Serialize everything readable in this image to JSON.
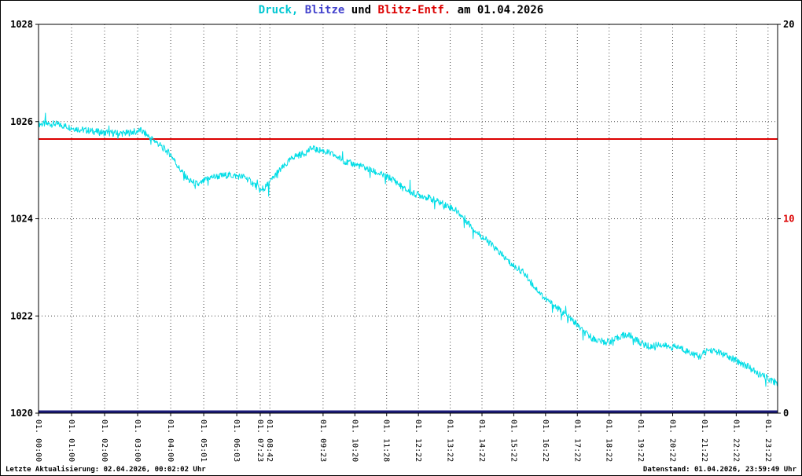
{
  "title": {
    "full": "Druck, Blitze und Blitz-Entf. am 01.04.2026",
    "parts": [
      {
        "text": "Druck,",
        "color": "#00c7d2"
      },
      {
        "text": " Blitze",
        "color": "#4242cd"
      },
      {
        "text": " und ",
        "color": "#000000"
      },
      {
        "text": "Blitz-Entf.",
        "color": "#dc0000"
      },
      {
        "text": " am 01.04.2026",
        "color": "#000000"
      }
    ]
  },
  "footer": {
    "left": "Letzte Aktualisierung: 02.04.2026, 00:02:02 Uhr",
    "right": "Datenstand: 01.04.2026, 23:59:49 Uhr"
  },
  "chart_data": {
    "type": "line",
    "title": "Druck, Blitze und Blitz-Entf. am 01.04.2026",
    "grid": true,
    "legend_position": "none",
    "left_axis": {
      "min": 1020,
      "max": 1028,
      "ticks": [
        1020,
        1022,
        1024,
        1026,
        1028
      ],
      "grid_at": [
        1022,
        1024,
        1026
      ]
    },
    "right_axis": {
      "min": 0,
      "max": 20,
      "ticks": [
        {
          "value": 0,
          "label": "0",
          "color": "#000000"
        },
        {
          "value": 10,
          "label": "10",
          "color": "#dc0000"
        },
        {
          "value": 20,
          "label": "20",
          "color": "#000000"
        }
      ]
    },
    "x_ticks": [
      {
        "pos": 0.0,
        "label": "01. 00:00"
      },
      {
        "pos": 0.0447,
        "label": "01. 01:00"
      },
      {
        "pos": 0.0894,
        "label": "01. 02:00"
      },
      {
        "pos": 0.1341,
        "label": "01. 03:00"
      },
      {
        "pos": 0.1788,
        "label": "01. 04:00"
      },
      {
        "pos": 0.2235,
        "label": "01. 05:01"
      },
      {
        "pos": 0.2682,
        "label": "01. 06:03"
      },
      {
        "pos": 0.3,
        "label": "01. 07:23"
      },
      {
        "pos": 0.313,
        "label": "01. 08:42"
      },
      {
        "pos": 0.385,
        "label": "01. 09:23"
      },
      {
        "pos": 0.428,
        "label": "01. 10:20"
      },
      {
        "pos": 0.471,
        "label": "01. 11:28"
      },
      {
        "pos": 0.514,
        "label": "01. 12:22"
      },
      {
        "pos": 0.557,
        "label": "01. 13:22"
      },
      {
        "pos": 0.6,
        "label": "01. 14:22"
      },
      {
        "pos": 0.643,
        "label": "01. 15:22"
      },
      {
        "pos": 0.686,
        "label": "01. 16:22"
      },
      {
        "pos": 0.729,
        "label": "01. 17:22"
      },
      {
        "pos": 0.772,
        "label": "01. 18:22"
      },
      {
        "pos": 0.815,
        "label": "01. 19:22"
      },
      {
        "pos": 0.858,
        "label": "01. 20:22"
      },
      {
        "pos": 0.901,
        "label": "01. 21:22"
      },
      {
        "pos": 0.944,
        "label": "01. 22:22"
      },
      {
        "pos": 0.987,
        "label": "01. 23:22"
      }
    ],
    "noise_amplitude": 0.07,
    "series": [
      {
        "name": "Druck",
        "axis": "left",
        "color": "#00dde6",
        "style": "noisy-line",
        "points": [
          [
            0.0,
            1025.95
          ],
          [
            0.023,
            1025.95
          ],
          [
            0.055,
            1025.84
          ],
          [
            0.093,
            1025.76
          ],
          [
            0.119,
            1025.76
          ],
          [
            0.138,
            1025.82
          ],
          [
            0.156,
            1025.62
          ],
          [
            0.179,
            1025.32
          ],
          [
            0.191,
            1025.02
          ],
          [
            0.204,
            1024.78
          ],
          [
            0.217,
            1024.7
          ],
          [
            0.231,
            1024.85
          ],
          [
            0.257,
            1024.9
          ],
          [
            0.279,
            1024.86
          ],
          [
            0.291,
            1024.72
          ],
          [
            0.302,
            1024.56
          ],
          [
            0.313,
            1024.75
          ],
          [
            0.323,
            1024.95
          ],
          [
            0.334,
            1025.1
          ],
          [
            0.345,
            1025.28
          ],
          [
            0.359,
            1025.34
          ],
          [
            0.369,
            1025.44
          ],
          [
            0.385,
            1025.4
          ],
          [
            0.401,
            1025.3
          ],
          [
            0.417,
            1025.16
          ],
          [
            0.433,
            1025.1
          ],
          [
            0.449,
            1025.0
          ],
          [
            0.465,
            1024.9
          ],
          [
            0.481,
            1024.8
          ],
          [
            0.494,
            1024.62
          ],
          [
            0.507,
            1024.52
          ],
          [
            0.523,
            1024.46
          ],
          [
            0.539,
            1024.36
          ],
          [
            0.555,
            1024.26
          ],
          [
            0.566,
            1024.16
          ],
          [
            0.579,
            1023.96
          ],
          [
            0.593,
            1023.72
          ],
          [
            0.609,
            1023.52
          ],
          [
            0.624,
            1023.3
          ],
          [
            0.64,
            1023.06
          ],
          [
            0.656,
            1022.9
          ],
          [
            0.67,
            1022.62
          ],
          [
            0.685,
            1022.36
          ],
          [
            0.699,
            1022.2
          ],
          [
            0.713,
            1022.02
          ],
          [
            0.726,
            1021.86
          ],
          [
            0.738,
            1021.66
          ],
          [
            0.752,
            1021.52
          ],
          [
            0.766,
            1021.46
          ],
          [
            0.779,
            1021.5
          ],
          [
            0.789,
            1021.6
          ],
          [
            0.8,
            1021.6
          ],
          [
            0.813,
            1021.46
          ],
          [
            0.827,
            1021.36
          ],
          [
            0.84,
            1021.42
          ],
          [
            0.853,
            1021.36
          ],
          [
            0.866,
            1021.36
          ],
          [
            0.88,
            1021.26
          ],
          [
            0.894,
            1021.16
          ],
          [
            0.906,
            1021.3
          ],
          [
            0.919,
            1021.26
          ],
          [
            0.933,
            1021.16
          ],
          [
            0.947,
            1021.06
          ],
          [
            0.96,
            1020.96
          ],
          [
            0.972,
            1020.82
          ],
          [
            0.986,
            1020.72
          ],
          [
            1.0,
            1020.62
          ]
        ]
      },
      {
        "name": "Blitze",
        "axis": "right",
        "color": "#1b1b78",
        "style": "flat-line",
        "value": 0
      },
      {
        "name": "Blitz-Entf.",
        "axis": "right",
        "color": "#dc0000",
        "style": "flat-line",
        "value": 14.1
      }
    ]
  }
}
